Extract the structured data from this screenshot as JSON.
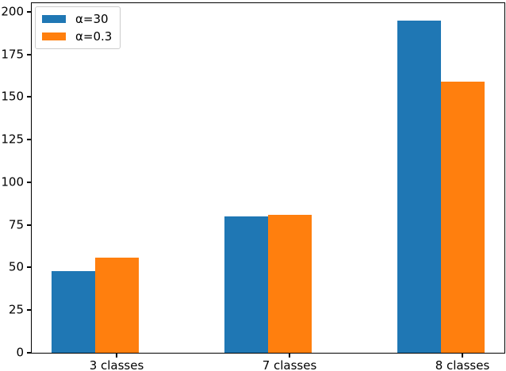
{
  "chart_data": {
    "type": "bar",
    "title": "",
    "xlabel": "",
    "ylabel": "",
    "categories": [
      "3 classes",
      "7 classes",
      "8 classes"
    ],
    "series": [
      {
        "name": "α=30",
        "color": "#1f77b4",
        "values": [
          48,
          80,
          195
        ]
      },
      {
        "name": "α=0.3",
        "color": "#ff7f0e",
        "values": [
          56,
          81,
          159
        ]
      }
    ],
    "yticks": [
      0,
      25,
      50,
      75,
      100,
      125,
      150,
      175,
      200
    ],
    "ylim": [
      0,
      205
    ],
    "grid": false,
    "legend_position": "upper left",
    "colors": {
      "spine": "#000000",
      "tick_text": "#000000",
      "legend_border": "#cccccc"
    }
  }
}
